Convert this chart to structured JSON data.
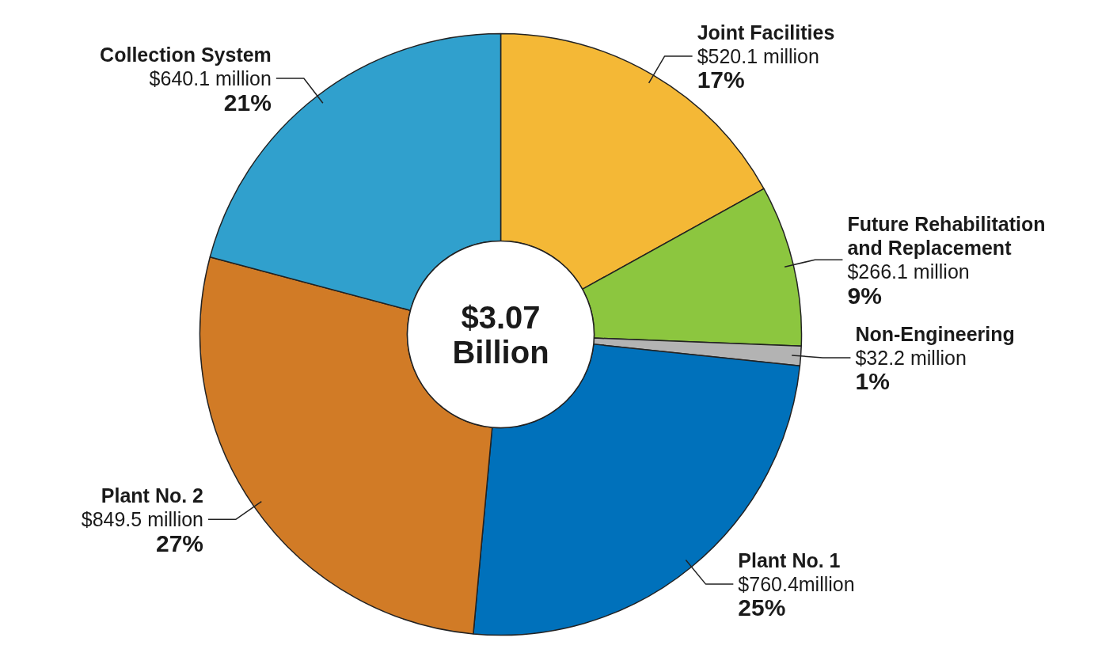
{
  "chart_data": {
    "type": "donut",
    "categories": [
      "Joint Facilities",
      "Future Rehabilitation and Replacement",
      "Non-Engineering",
      "Plant No. 1",
      "Plant No. 2",
      "Collection System"
    ],
    "values": [
      520.1,
      266.1,
      32.2,
      760.4,
      849.5,
      640.1
    ],
    "colors": [
      "#f4b836",
      "#8cc63f",
      "#b3b3b3",
      "#0071bb",
      "#d17b26",
      "#30a0cd"
    ],
    "value_labels": [
      "$520.1 million",
      "$266.1 million",
      "$32.2 million",
      "$760.4million",
      "$849.5 million",
      "$640.1 million"
    ],
    "annotations": [
      "$3.07\nBillion",
      {
        "text": "17%",
        "x": "Joint Facilities"
      },
      {
        "text": "9%",
        "x": "Future Rehabilitation and Replacement"
      },
      {
        "text": "1%",
        "x": "Non-Engineering"
      },
      {
        "text": "25%",
        "x": "Plant No. 1"
      },
      {
        "text": "27%",
        "x": "Plant No. 2"
      },
      {
        "text": "21%",
        "x": "Collection System"
      }
    ]
  }
}
